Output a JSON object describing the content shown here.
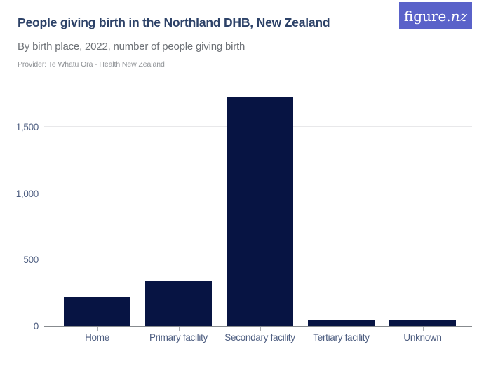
{
  "header": {
    "title": "People giving birth in the Northland DHB, New Zealand",
    "subtitle": "By birth place, 2022, number of people giving birth",
    "provider": "Provider: Te Whatu Ora - Health New Zealand"
  },
  "logo": {
    "prefix": "figure.",
    "suffix": "nz"
  },
  "colors": {
    "bar": "#071443",
    "title": "#2d4268",
    "subtitle": "#6e7277",
    "provider": "#8f9296",
    "axis_label": "#4e5e81",
    "gridline": "#e8e8ea",
    "axis_line": "#878b8f",
    "logo_bg": "#5a62c9",
    "logo_text": "#ffffff"
  },
  "chart_data": {
    "type": "bar",
    "title": "People giving birth in the Northland DHB, New Zealand",
    "subtitle": "By birth place, 2022, number of people giving birth",
    "categories": [
      "Home",
      "Primary facility",
      "Secondary facility",
      "Tertiary facility",
      "Unknown"
    ],
    "values": [
      220,
      340,
      1730,
      45,
      45
    ],
    "xlabel": "",
    "ylabel": "",
    "yticks": [
      0,
      500,
      1000,
      1500
    ],
    "ytick_labels": [
      "0",
      "500",
      "1,000",
      "1,500"
    ],
    "ylim": [
      0,
      1830
    ],
    "grid": "horizontal-gridlines",
    "legend": "none",
    "bar_color": "#071443"
  }
}
